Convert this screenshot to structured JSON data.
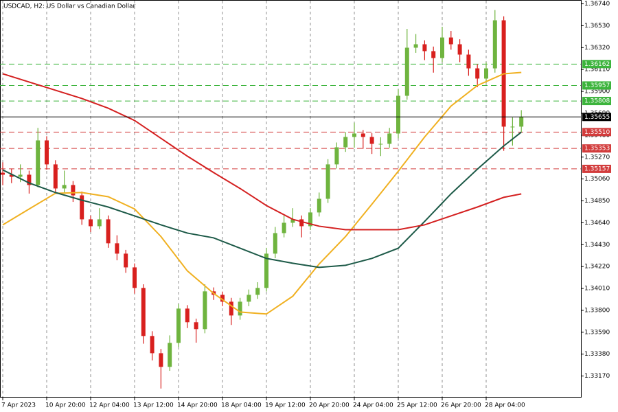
{
  "chart_data": {
    "type": "candlestick",
    "title": "USDCAD, H2:  US Dollar vs Canadian Dollar",
    "ylim": [
      1.3297,
      1.3677
    ],
    "yticks": [
      {
        "value": 1.3674,
        "label": "1.36740"
      },
      {
        "value": 1.3653,
        "label": "1.36530"
      },
      {
        "value": 1.3632,
        "label": "1.36320"
      },
      {
        "value": 1.3611,
        "label": "1.36110"
      },
      {
        "value": 1.359,
        "label": "1.35900"
      },
      {
        "value": 1.3569,
        "label": "1.35690"
      },
      {
        "value": 1.3548,
        "label": "1.35480"
      },
      {
        "value": 1.3527,
        "label": "1.35270"
      },
      {
        "value": 1.3506,
        "label": "1.35060"
      },
      {
        "value": 1.3485,
        "label": "1.34850"
      },
      {
        "value": 1.3464,
        "label": "1.34640"
      },
      {
        "value": 1.3443,
        "label": "1.34430"
      },
      {
        "value": 1.3422,
        "label": "1.34220"
      },
      {
        "value": 1.3401,
        "label": "1.34010"
      },
      {
        "value": 1.338,
        "label": "1.33800"
      },
      {
        "value": 1.3359,
        "label": "1.33590"
      },
      {
        "value": 1.3338,
        "label": "1.33380"
      },
      {
        "value": 1.3317,
        "label": "1.33170"
      }
    ],
    "xticks": [
      {
        "value": 0,
        "label": "7 Apr 2023"
      },
      {
        "value": 5,
        "label": "10 Apr 20:00"
      },
      {
        "value": 10,
        "label": "12 Apr 04:00"
      },
      {
        "value": 15,
        "label": "13 Apr 12:00"
      },
      {
        "value": 20,
        "label": "14 Apr 20:00"
      },
      {
        "value": 25,
        "label": "18 Apr 04:00"
      },
      {
        "value": 30,
        "label": "19 Apr 12:00"
      },
      {
        "value": 35,
        "label": "20 Apr 20:00"
      },
      {
        "value": 40,
        "label": "24 Apr 04:00"
      },
      {
        "value": 45,
        "label": "25 Apr 12:00"
      },
      {
        "value": 50,
        "label": "26 Apr 20:00"
      },
      {
        "value": 55,
        "label": "28 Apr 04:00"
      }
    ],
    "grid_x": true,
    "up_color": "#6fb43f",
    "down_color": "#d8201e",
    "ohlc": [
      [
        1.3512,
        1.3522,
        1.35,
        1.35101
      ],
      [
        1.35101,
        1.3516,
        1.3502,
        1.35081
      ],
      [
        1.35081,
        1.352,
        1.3503,
        1.35101
      ],
      [
        1.35101,
        1.3514,
        1.3492,
        1.35002
      ],
      [
        1.35002,
        1.3555,
        1.3498,
        1.3543
      ],
      [
        1.3543,
        1.3547,
        1.3515,
        1.352
      ],
      [
        1.352,
        1.3524,
        1.3492,
        1.34969
      ],
      [
        1.34969,
        1.3514,
        1.3493,
        1.35002
      ],
      [
        1.35002,
        1.3504,
        1.3484,
        1.34903
      ],
      [
        1.34903,
        1.3494,
        1.3462,
        1.34673
      ],
      [
        1.34673,
        1.3471,
        1.3455,
        1.34607
      ],
      [
        1.34607,
        1.3478,
        1.3458,
        1.34673
      ],
      [
        1.34673,
        1.3471,
        1.344,
        1.34443
      ],
      [
        1.34443,
        1.3452,
        1.3428,
        1.34344
      ],
      [
        1.34344,
        1.3438,
        1.3416,
        1.34212
      ],
      [
        1.34212,
        1.3425,
        1.3396,
        1.34015
      ],
      [
        1.34015,
        1.3405,
        1.3348,
        1.33554
      ],
      [
        1.33554,
        1.336,
        1.3332,
        1.33389
      ],
      [
        1.33389,
        1.3343,
        1.3305,
        1.33258
      ],
      [
        1.33258,
        1.3356,
        1.3322,
        1.33488
      ],
      [
        1.33488,
        1.3386,
        1.3345,
        1.33817
      ],
      [
        1.33817,
        1.3385,
        1.3363,
        1.33686
      ],
      [
        1.33686,
        1.3372,
        1.3349,
        1.3362
      ],
      [
        1.3362,
        1.3405,
        1.3358,
        1.33982
      ],
      [
        1.33982,
        1.3402,
        1.339,
        1.33949
      ],
      [
        1.33949,
        1.3398,
        1.3384,
        1.33883
      ],
      [
        1.33883,
        1.3392,
        1.3366,
        1.33751
      ],
      [
        1.33751,
        1.3392,
        1.3371,
        1.33883
      ],
      [
        1.33883,
        1.34,
        1.3384,
        1.33949
      ],
      [
        1.33949,
        1.3407,
        1.3391,
        1.34015
      ],
      [
        1.34015,
        1.344,
        1.3398,
        1.34344
      ],
      [
        1.34344,
        1.346,
        1.343,
        1.34541
      ],
      [
        1.34541,
        1.3471,
        1.345,
        1.3464
      ],
      [
        1.3464,
        1.3478,
        1.346,
        1.34673
      ],
      [
        1.34673,
        1.3471,
        1.345,
        1.34607
      ],
      [
        1.34607,
        1.3478,
        1.3457,
        1.34739
      ],
      [
        1.34739,
        1.3493,
        1.347,
        1.3487
      ],
      [
        1.3487,
        1.3525,
        1.3483,
        1.352
      ],
      [
        1.352,
        1.3541,
        1.3516,
        1.35364
      ],
      [
        1.35364,
        1.3551,
        1.3532,
        1.35463
      ],
      [
        1.35463,
        1.356,
        1.3536,
        1.35496
      ],
      [
        1.35496,
        1.3553,
        1.3535,
        1.35463
      ],
      [
        1.35463,
        1.355,
        1.353,
        1.35397
      ],
      [
        1.35397,
        1.3546,
        1.3528,
        1.35397
      ],
      [
        1.35397,
        1.3555,
        1.3536,
        1.35496
      ],
      [
        1.35496,
        1.3592,
        1.3545,
        1.35858
      ],
      [
        1.35858,
        1.365,
        1.3582,
        1.36319
      ],
      [
        1.36319,
        1.3645,
        1.3627,
        1.36352
      ],
      [
        1.36352,
        1.3639,
        1.362,
        1.36286
      ],
      [
        1.36286,
        1.3633,
        1.3608,
        1.3622
      ],
      [
        1.3622,
        1.3652,
        1.3618,
        1.36417
      ],
      [
        1.36417,
        1.3648,
        1.363,
        1.36352
      ],
      [
        1.36352,
        1.364,
        1.3618,
        1.36253
      ],
      [
        1.36253,
        1.363,
        1.3605,
        1.36121
      ],
      [
        1.36121,
        1.3616,
        1.3594,
        1.36023
      ],
      [
        1.36023,
        1.3618,
        1.3598,
        1.36121
      ],
      [
        1.36121,
        1.3668,
        1.3608,
        1.36582
      ],
      [
        1.36582,
        1.3662,
        1.3533,
        1.35562
      ],
      [
        1.35562,
        1.3565,
        1.3538,
        1.35562
      ],
      [
        1.35562,
        1.3572,
        1.3551,
        1.35655
      ]
    ],
    "ma_x": [
      0,
      3,
      6,
      9,
      12,
      15,
      18,
      21,
      24,
      27,
      30,
      33,
      36,
      39,
      42,
      45,
      48,
      51,
      54,
      57,
      59
    ],
    "series": [
      {
        "color": "#f0b020",
        "values": [
          1.3462,
          1.34772,
          1.34923,
          1.3493,
          1.3489,
          1.34772,
          1.34508,
          1.34179,
          1.33962,
          1.33784,
          1.33765,
          1.33936,
          1.34245,
          1.34508,
          1.34818,
          1.35134,
          1.35463,
          1.35759,
          1.35957,
          1.36069,
          1.36082
        ]
      },
      {
        "color": "#1d5a48",
        "values": [
          1.35147,
          1.35022,
          1.3493,
          1.34857,
          1.34791,
          1.34706,
          1.3462,
          1.34541,
          1.34495,
          1.34396,
          1.34298,
          1.34252,
          1.34212,
          1.34232,
          1.34298,
          1.34396,
          1.34653,
          1.34917,
          1.35154,
          1.35377,
          1.35509
        ]
      },
      {
        "color": "#d42020",
        "values": [
          1.36069,
          1.3599,
          1.35911,
          1.35832,
          1.35739,
          1.35621,
          1.3545,
          1.35279,
          1.35121,
          1.34969,
          1.34805,
          1.34673,
          1.34607,
          1.34574,
          1.34574,
          1.34574,
          1.3462,
          1.34706,
          1.34791,
          1.34884,
          1.34917
        ]
      }
    ],
    "levels": [
      {
        "value": 1.36162,
        "color": "#3cb43c"
      },
      {
        "value": 1.35957,
        "color": "#3cb43c"
      },
      {
        "value": 1.35808,
        "color": "#3cb43c"
      },
      {
        "value": 1.3551,
        "label": "1.35510",
        "color": "#d23c3c"
      },
      {
        "value": 1.35353,
        "color": "#d23c3c"
      },
      {
        "value": 1.35157,
        "color": "#d23c3c"
      }
    ],
    "current_price": 1.35655,
    "current_color": "#000000"
  }
}
